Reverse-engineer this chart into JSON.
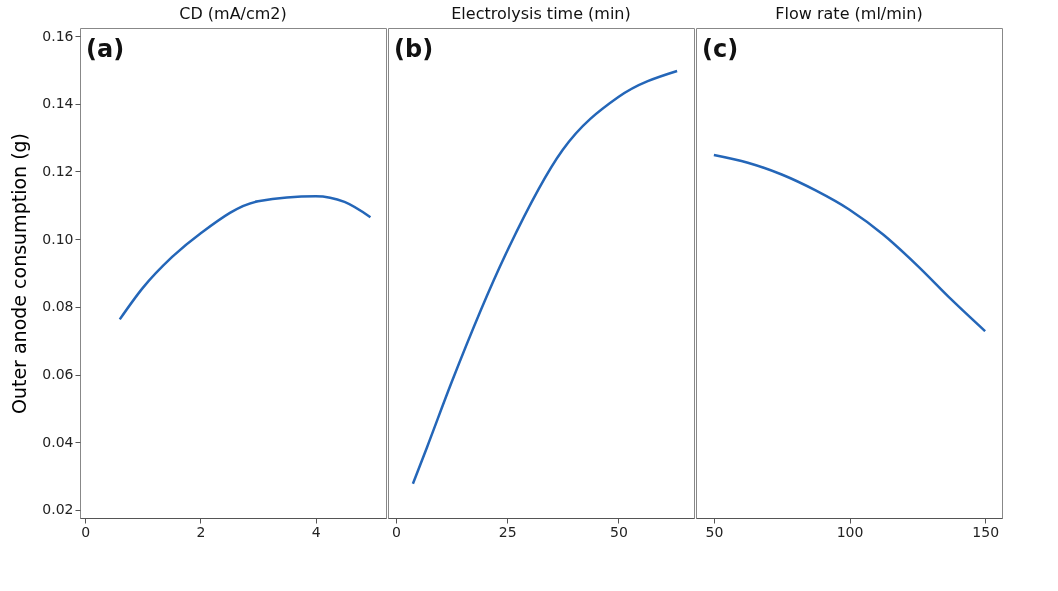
{
  "chart_data": [
    {
      "type": "line",
      "title": "CD (mA/cm2)",
      "ylabel": "Outer anode consumption (g)",
      "annotations": [
        "(a)"
      ],
      "x": [
        0.6,
        1.0,
        1.5,
        2.0,
        3.0,
        4.0,
        4.5,
        4.95
      ],
      "xlim": [
        -0.09,
        5.22
      ],
      "xticks": [
        0,
        2,
        4
      ],
      "ylim": [
        0.0176,
        0.1624
      ],
      "yticks": [
        0.02,
        0.04,
        0.06,
        0.08,
        {
          "value": 0.1,
          "label": "0.10"
        },
        0.12,
        0.14,
        0.16
      ],
      "series": [
        {
          "color": "#2466b8",
          "values": [
            0.0763,
            0.0856,
            0.0946,
            0.1017,
            0.1112,
            0.1127,
            0.111,
            0.1065
          ]
        }
      ]
    },
    {
      "type": "line",
      "title": "Electrolysis time (min)",
      "annotations": [
        "(b)"
      ],
      "x": [
        3.8,
        7,
        12.5,
        25,
        37.5,
        50,
        63.2
      ],
      "xlim": [
        -1.8,
        67
      ],
      "xticks": [
        0,
        25,
        50
      ],
      "ylim": [
        0.0176,
        0.1624
      ],
      "yticks": [
        0.02,
        0.04,
        0.06,
        0.08,
        0.1,
        0.12,
        0.14,
        0.16
      ],
      "tick_labels": "x",
      "series": [
        {
          "color": "#2466b8",
          "values": [
            0.0277,
            0.0386,
            0.0577,
            0.0965,
            0.1264,
            0.142,
            0.1497
          ]
        }
      ]
    },
    {
      "type": "line",
      "title": "Flow rate (ml/min)",
      "annotations": [
        "(c)"
      ],
      "x": [
        50,
        62.5,
        75,
        87.5,
        100,
        112.5,
        125,
        137.5,
        150
      ],
      "xlim": [
        43.4,
        156.2
      ],
      "xticks": [
        50,
        100,
        150
      ],
      "ylim": [
        0.0176,
        0.1624
      ],
      "yticks": [
        0.02,
        0.04,
        0.06,
        0.08,
        0.1,
        0.12,
        0.14,
        0.16
      ],
      "tick_labels": "x",
      "series": [
        {
          "color": "#2466b8",
          "values": [
            0.1249,
            0.1226,
            0.1191,
            0.1144,
            0.1087,
            0.1013,
            0.0922,
            0.0822,
            0.0728
          ]
        }
      ]
    }
  ]
}
